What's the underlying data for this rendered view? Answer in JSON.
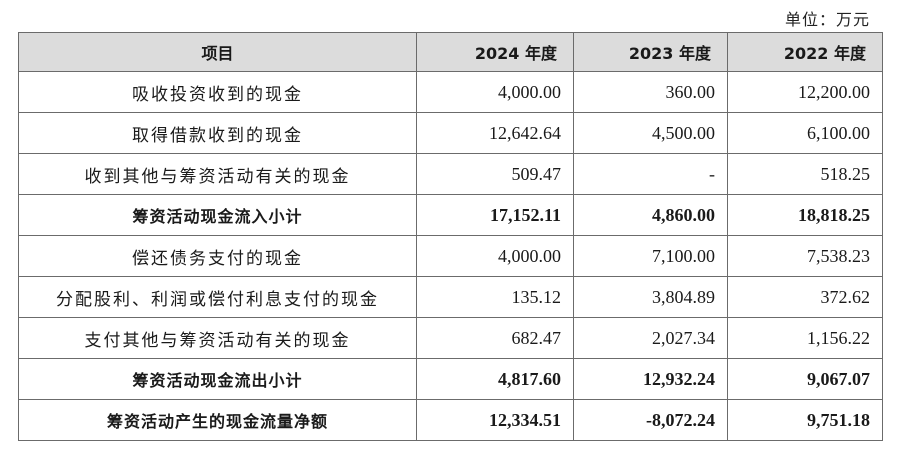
{
  "unit_label": "单位：万元",
  "header": {
    "item": "项目",
    "years": [
      "2024 年度",
      "2023 年度",
      "2022 年度"
    ]
  },
  "rows": [
    {
      "label": "吸收投资收到的现金",
      "values": [
        "4,000.00",
        "360.00",
        "12,200.00"
      ],
      "bold": false
    },
    {
      "label": "取得借款收到的现金",
      "values": [
        "12,642.64",
        "4,500.00",
        "6,100.00"
      ],
      "bold": false
    },
    {
      "label": "收到其他与筹资活动有关的现金",
      "values": [
        "509.47",
        "-",
        "518.25"
      ],
      "bold": false
    },
    {
      "label": "筹资活动现金流入小计",
      "values": [
        "17,152.11",
        "4,860.00",
        "18,818.25"
      ],
      "bold": true
    },
    {
      "label": "偿还债务支付的现金",
      "values": [
        "4,000.00",
        "7,100.00",
        "7,538.23"
      ],
      "bold": false
    },
    {
      "label": "分配股利、利润或偿付利息支付的现金",
      "values": [
        "135.12",
        "3,804.89",
        "372.62"
      ],
      "bold": false
    },
    {
      "label": "支付其他与筹资活动有关的现金",
      "values": [
        "682.47",
        "2,027.34",
        "1,156.22"
      ],
      "bold": false
    },
    {
      "label": "筹资活动现金流出小计",
      "values": [
        "4,817.60",
        "12,932.24",
        "9,067.07"
      ],
      "bold": true
    },
    {
      "label": "筹资活动产生的现金流量净额",
      "values": [
        "12,334.51",
        "-8,072.24",
        "9,751.18"
      ],
      "bold": true
    }
  ]
}
